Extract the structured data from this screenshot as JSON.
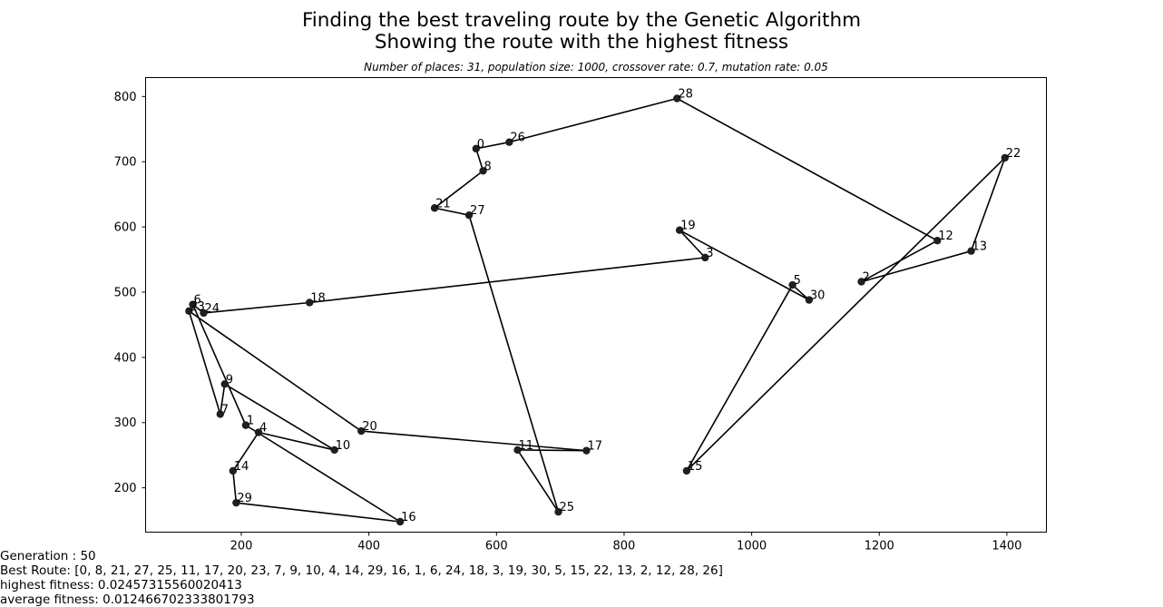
{
  "chart_data": {
    "type": "scatter",
    "title_line1": "Finding the best traveling route by the Genetic Algorithm",
    "title_line2": "Showing the route with the highest fitness",
    "subtitle": "Number of places: 31, population size: 1000, crossover rate: 0.7, mutation rate: 0.05",
    "xlabel": "",
    "ylabel": "",
    "xlim": [
      50,
      1462
    ],
    "ylim": [
      132,
      829
    ],
    "xticks": [
      200,
      400,
      600,
      800,
      1000,
      1200,
      1400
    ],
    "yticks": [
      200,
      300,
      400,
      500,
      600,
      700,
      800
    ],
    "grid": false,
    "points": [
      {
        "id": 0,
        "label": "0",
        "x": 568,
        "y": 720
      },
      {
        "id": 1,
        "label": "1",
        "x": 207,
        "y": 296
      },
      {
        "id": 2,
        "label": "2",
        "x": 1172,
        "y": 516
      },
      {
        "id": 3,
        "label": "3",
        "x": 927,
        "y": 553
      },
      {
        "id": 4,
        "label": "4",
        "x": 227,
        "y": 285
      },
      {
        "id": 5,
        "label": "5",
        "x": 1064,
        "y": 511
      },
      {
        "id": 6,
        "label": "6",
        "x": 124,
        "y": 481
      },
      {
        "id": 7,
        "label": "7",
        "x": 167,
        "y": 313
      },
      {
        "id": 8,
        "label": "8",
        "x": 579,
        "y": 686
      },
      {
        "id": 9,
        "label": "9",
        "x": 174,
        "y": 359
      },
      {
        "id": 10,
        "label": "10",
        "x": 346,
        "y": 258
      },
      {
        "id": 11,
        "label": "11",
        "x": 633,
        "y": 258
      },
      {
        "id": 12,
        "label": "12",
        "x": 1291,
        "y": 579
      },
      {
        "id": 13,
        "label": "13",
        "x": 1344,
        "y": 563
      },
      {
        "id": 14,
        "label": "14",
        "x": 187,
        "y": 226
      },
      {
        "id": 15,
        "label": "15",
        "x": 898,
        "y": 226
      },
      {
        "id": 16,
        "label": "16",
        "x": 449,
        "y": 148
      },
      {
        "id": 17,
        "label": "17",
        "x": 741,
        "y": 257
      },
      {
        "id": 18,
        "label": "18",
        "x": 307,
        "y": 484
      },
      {
        "id": 19,
        "label": "19",
        "x": 887,
        "y": 595
      },
      {
        "id": 20,
        "label": "20",
        "x": 388,
        "y": 287
      },
      {
        "id": 21,
        "label": "21",
        "x": 503,
        "y": 629
      },
      {
        "id": 22,
        "label": "22",
        "x": 1397,
        "y": 706
      },
      {
        "id": 23,
        "label": "23",
        "x": 118,
        "y": 471
      },
      {
        "id": 24,
        "label": "24",
        "x": 141,
        "y": 468
      },
      {
        "id": 25,
        "label": "25",
        "x": 697,
        "y": 163
      },
      {
        "id": 26,
        "label": "26",
        "x": 620,
        "y": 730
      },
      {
        "id": 27,
        "label": "27",
        "x": 557,
        "y": 618
      },
      {
        "id": 28,
        "label": "28",
        "x": 883,
        "y": 797
      },
      {
        "id": 29,
        "label": "29",
        "x": 192,
        "y": 177
      },
      {
        "id": 30,
        "label": "30",
        "x": 1090,
        "y": 488
      }
    ],
    "route": [
      0,
      8,
      21,
      27,
      25,
      11,
      17,
      20,
      23,
      7,
      9,
      10,
      4,
      14,
      29,
      16,
      1,
      6,
      24,
      18,
      3,
      19,
      30,
      5,
      15,
      22,
      13,
      2,
      12,
      28,
      26
    ],
    "colors": {
      "line": "#000000",
      "marker": "#1f1f1f",
      "axes": "#000000",
      "background": "#ffffff"
    }
  },
  "status": {
    "generation": "Generation : 50",
    "best_route": "Best Route: [0, 8, 21, 27, 25, 11, 17, 20, 23, 7, 9, 10, 4, 14, 29, 16, 1, 6, 24, 18, 3, 19, 30, 5, 15, 22, 13, 2, 12, 28, 26]",
    "highest_fitness": "highest fitness: 0.02457315560020413",
    "average_fitness": "average fitness: 0.012466702333801793"
  }
}
